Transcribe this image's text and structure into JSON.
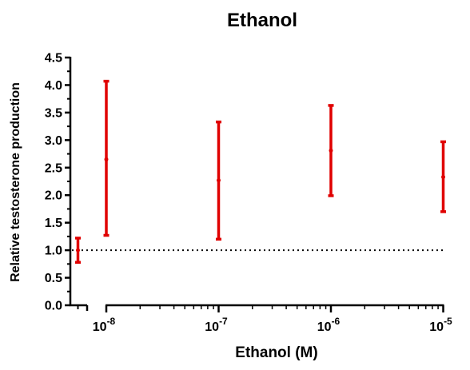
{
  "chart_data": {
    "type": "scatter",
    "title": "Ethanol",
    "xlabel": "Ethanol (M)",
    "ylabel": "Relative testosterone production",
    "x_scale": "log",
    "x_tick_labels": [
      {
        "base": "10",
        "exp": "-8",
        "value": 1e-08
      },
      {
        "base": "10",
        "exp": "-7",
        "value": 1e-07
      },
      {
        "base": "10",
        "exp": "-6",
        "value": 1e-06
      },
      {
        "base": "10",
        "exp": "-5",
        "value": 1e-05
      }
    ],
    "y_ticks": [
      "0.0",
      "0.5",
      "1.0",
      "1.5",
      "2.0",
      "2.5",
      "3.0",
      "3.5",
      "4.0",
      "4.5"
    ],
    "ylim": [
      0,
      4.5
    ],
    "reference_line": {
      "y": 1.0,
      "style": "dotted"
    },
    "control": {
      "mean": 1.0,
      "low": 0.78,
      "high": 1.22
    },
    "points": [
      {
        "x": 1e-08,
        "mean": 2.65,
        "low": 1.27,
        "high": 4.07
      },
      {
        "x": 1e-07,
        "mean": 2.27,
        "low": 1.2,
        "high": 3.33
      },
      {
        "x": 1e-06,
        "mean": 2.81,
        "low": 1.99,
        "high": 3.63
      },
      {
        "x": 1e-05,
        "mean": 2.33,
        "low": 1.7,
        "high": 2.97
      }
    ],
    "color": "#e00000",
    "grid": false,
    "legend": "none"
  }
}
